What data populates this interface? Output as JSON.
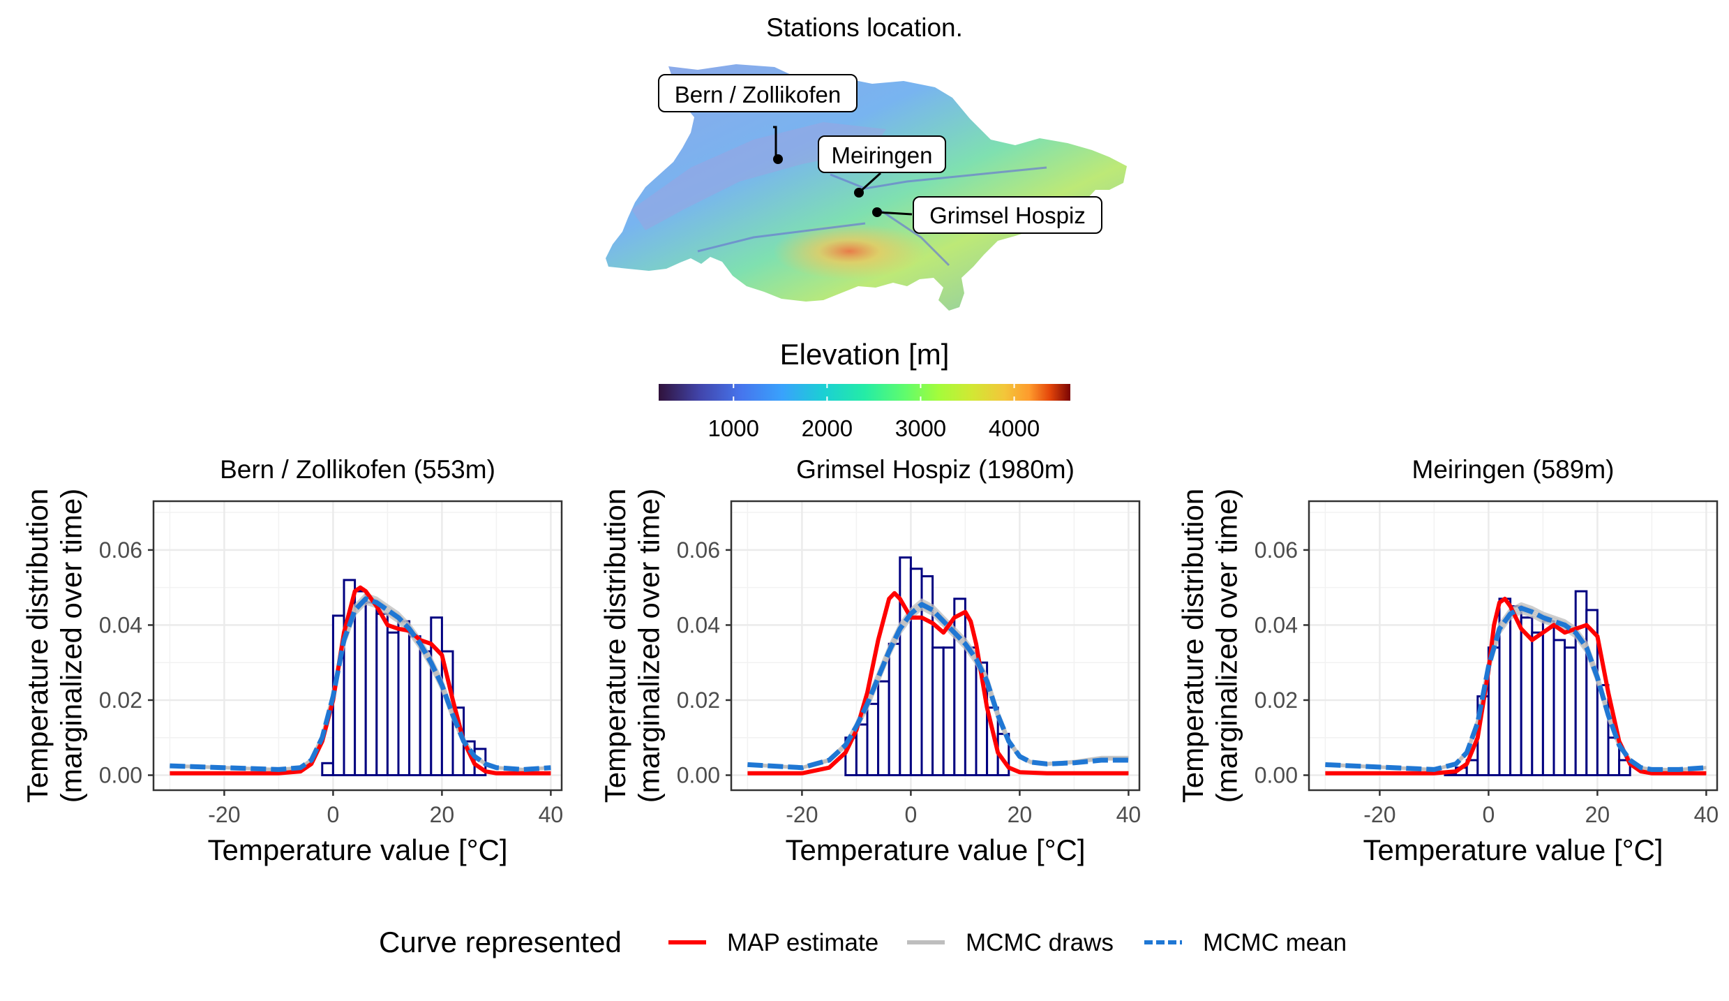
{
  "map": {
    "title": "Stations location.",
    "stations": [
      {
        "name": "Bern / Zollikofen"
      },
      {
        "name": "Meiringen"
      },
      {
        "name": "Grimsel Hospiz"
      }
    ],
    "colorbar": {
      "title": "Elevation [m]",
      "ticks": [
        1000,
        2000,
        3000,
        4000
      ],
      "range": [
        200,
        4600
      ],
      "colormap": "turbo"
    }
  },
  "chart_data": [
    {
      "type": "bar",
      "title": "Bern / Zollikofen (553m)",
      "xlabel": "Temperature value [°C]",
      "ylabel": "Temperature distribution (marginalized over time)",
      "ylabel_lines": [
        "Temperature distribution",
        "(marginalized over time)"
      ],
      "xlim": [
        -33,
        42
      ],
      "ylim": [
        -0.004,
        0.073
      ],
      "xticks": [
        -20,
        0,
        20,
        40
      ],
      "yticks": [
        0.0,
        0.02,
        0.04,
        0.06
      ],
      "yticklabels": [
        "0.00",
        "0.02",
        "0.04",
        "0.06"
      ],
      "histogram": {
        "bin_edges": [
          -2,
          0,
          2,
          4,
          6,
          8,
          10,
          12,
          14,
          16,
          18,
          20,
          22,
          24,
          26,
          28
        ],
        "values": [
          0.0032,
          0.0425,
          0.052,
          0.049,
          0.046,
          0.043,
          0.038,
          0.041,
          0.037,
          0.033,
          0.042,
          0.033,
          0.018,
          0.009,
          0.007
        ]
      },
      "series": [
        {
          "name": "MAP estimate",
          "x": [
            -30,
            -10,
            -6,
            -4,
            -2,
            0,
            2,
            4,
            5,
            6,
            8,
            10,
            12,
            14,
            16,
            18,
            20,
            22,
            24,
            26,
            28,
            30,
            35,
            40
          ],
          "y": [
            0.0005,
            0.0005,
            0.001,
            0.003,
            0.009,
            0.02,
            0.038,
            0.049,
            0.05,
            0.049,
            0.045,
            0.04,
            0.039,
            0.0385,
            0.036,
            0.035,
            0.032,
            0.02,
            0.009,
            0.003,
            0.001,
            0.0005,
            0.0005,
            0.0005
          ]
        },
        {
          "name": "MCMC draws",
          "x": [
            -30,
            -10,
            -6,
            -4,
            -2,
            0,
            2,
            4,
            6,
            8,
            10,
            12,
            14,
            16,
            18,
            20,
            22,
            24,
            26,
            28,
            30,
            35,
            40
          ],
          "y": [
            0.0025,
            0.0015,
            0.002,
            0.004,
            0.01,
            0.021,
            0.036,
            0.044,
            0.047,
            0.046,
            0.044,
            0.042,
            0.039,
            0.035,
            0.03,
            0.024,
            0.016,
            0.009,
            0.005,
            0.003,
            0.002,
            0.0015,
            0.002
          ]
        },
        {
          "name": "MCMC mean",
          "x": [
            -30,
            -10,
            -6,
            -4,
            -2,
            0,
            2,
            4,
            6,
            8,
            10,
            12,
            14,
            16,
            18,
            20,
            22,
            24,
            26,
            28,
            30,
            35,
            40
          ],
          "y": [
            0.0025,
            0.0015,
            0.002,
            0.004,
            0.01,
            0.021,
            0.036,
            0.044,
            0.047,
            0.046,
            0.044,
            0.042,
            0.039,
            0.035,
            0.03,
            0.024,
            0.016,
            0.009,
            0.005,
            0.003,
            0.002,
            0.0015,
            0.002
          ]
        }
      ]
    },
    {
      "type": "bar",
      "title": "Grimsel Hospiz (1980m)",
      "xlabel": "Temperature value [°C]",
      "ylabel": "Temperature distribution (marginalized over time)",
      "ylabel_lines": [
        "Temperature distribution",
        "(marginalized over time)"
      ],
      "xlim": [
        -33,
        42
      ],
      "ylim": [
        -0.004,
        0.073
      ],
      "xticks": [
        -20,
        0,
        20,
        40
      ],
      "yticks": [
        0.0,
        0.02,
        0.04,
        0.06
      ],
      "yticklabels": [
        "0.00",
        "0.02",
        "0.04",
        "0.06"
      ],
      "histogram": {
        "bin_edges": [
          -12,
          -10,
          -8,
          -6,
          -4,
          -2,
          0,
          2,
          4,
          6,
          8,
          10,
          12,
          14,
          16,
          18
        ],
        "values": [
          0.01,
          0.0135,
          0.019,
          0.025,
          0.035,
          0.058,
          0.055,
          0.053,
          0.034,
          0.034,
          0.047,
          0.034,
          0.03,
          0.018,
          0.011
        ]
      },
      "series": [
        {
          "name": "MAP estimate",
          "x": [
            -30,
            -20,
            -15,
            -12,
            -10,
            -8,
            -6,
            -4,
            -3,
            -2,
            0,
            2,
            4,
            6,
            8,
            10,
            11,
            12,
            14,
            16,
            18,
            20,
            25,
            30,
            40
          ],
          "y": [
            0.0005,
            0.0005,
            0.002,
            0.006,
            0.012,
            0.022,
            0.036,
            0.047,
            0.0485,
            0.047,
            0.042,
            0.042,
            0.0405,
            0.038,
            0.042,
            0.0435,
            0.041,
            0.035,
            0.018,
            0.006,
            0.002,
            0.0008,
            0.0005,
            0.0005,
            0.0005
          ]
        },
        {
          "name": "MCMC draws",
          "x": [
            -30,
            -20,
            -15,
            -12,
            -10,
            -8,
            -6,
            -4,
            -2,
            0,
            2,
            4,
            6,
            8,
            10,
            12,
            14,
            16,
            18,
            20,
            22,
            25,
            30,
            35,
            40
          ],
          "y": [
            0.0028,
            0.002,
            0.004,
            0.008,
            0.013,
            0.019,
            0.026,
            0.033,
            0.039,
            0.043,
            0.0455,
            0.044,
            0.041,
            0.038,
            0.035,
            0.031,
            0.025,
            0.016,
            0.009,
            0.005,
            0.0035,
            0.003,
            0.0035,
            0.0045,
            0.0045
          ]
        },
        {
          "name": "MCMC mean",
          "x": [
            -30,
            -20,
            -15,
            -12,
            -10,
            -8,
            -6,
            -4,
            -2,
            0,
            2,
            4,
            6,
            8,
            10,
            12,
            14,
            16,
            18,
            20,
            22,
            25,
            30,
            35,
            40
          ],
          "y": [
            0.0028,
            0.002,
            0.004,
            0.008,
            0.013,
            0.019,
            0.026,
            0.033,
            0.039,
            0.043,
            0.0455,
            0.044,
            0.041,
            0.038,
            0.035,
            0.031,
            0.025,
            0.016,
            0.009,
            0.005,
            0.0035,
            0.003,
            0.0033,
            0.004,
            0.004
          ]
        }
      ]
    },
    {
      "type": "bar",
      "title": "Meiringen (589m)",
      "xlabel": "Temperature value [°C]",
      "ylabel": "Temperature distribution (marginalized over time)",
      "ylabel_lines": [
        "Temperature distribution",
        "(marginalized over time)"
      ],
      "xlim": [
        -33,
        42
      ],
      "ylim": [
        -0.004,
        0.073
      ],
      "xticks": [
        -20,
        0,
        20,
        40
      ],
      "yticks": [
        0.0,
        0.02,
        0.04,
        0.06
      ],
      "yticklabels": [
        "0.00",
        "0.02",
        "0.04",
        "0.06"
      ],
      "histogram": {
        "bin_edges": [
          -8,
          -6,
          -4,
          -2,
          0,
          2,
          4,
          6,
          8,
          10,
          12,
          14,
          16,
          18,
          20,
          22,
          24,
          26
        ],
        "values": [
          0.0005,
          0.002,
          0.004,
          0.021,
          0.034,
          0.047,
          0.045,
          0.042,
          0.038,
          0.041,
          0.036,
          0.034,
          0.049,
          0.044,
          0.024,
          0.01,
          0.004
        ]
      },
      "series": [
        {
          "name": "MAP estimate",
          "x": [
            -30,
            -10,
            -6,
            -4,
            -2,
            0,
            1,
            2,
            3,
            4,
            6,
            8,
            10,
            12,
            14,
            16,
            18,
            20,
            22,
            24,
            26,
            28,
            30,
            35,
            40
          ],
          "y": [
            0.0005,
            0.0005,
            0.001,
            0.003,
            0.01,
            0.028,
            0.04,
            0.046,
            0.047,
            0.045,
            0.039,
            0.036,
            0.038,
            0.04,
            0.038,
            0.039,
            0.04,
            0.037,
            0.022,
            0.009,
            0.003,
            0.001,
            0.0005,
            0.0005,
            0.0005
          ]
        },
        {
          "name": "MCMC draws",
          "x": [
            -30,
            -10,
            -6,
            -4,
            -2,
            0,
            2,
            4,
            6,
            8,
            10,
            12,
            14,
            16,
            18,
            20,
            22,
            24,
            26,
            28,
            30,
            35,
            40
          ],
          "y": [
            0.0028,
            0.0015,
            0.003,
            0.006,
            0.014,
            0.029,
            0.039,
            0.043,
            0.0445,
            0.0435,
            0.042,
            0.041,
            0.04,
            0.038,
            0.034,
            0.026,
            0.016,
            0.008,
            0.004,
            0.002,
            0.0015,
            0.0015,
            0.002
          ]
        },
        {
          "name": "MCMC mean",
          "x": [
            -30,
            -10,
            -6,
            -4,
            -2,
            0,
            2,
            4,
            6,
            8,
            10,
            12,
            14,
            16,
            18,
            20,
            22,
            24,
            26,
            28,
            30,
            35,
            40
          ],
          "y": [
            0.0028,
            0.0015,
            0.003,
            0.006,
            0.014,
            0.029,
            0.039,
            0.043,
            0.0445,
            0.0435,
            0.042,
            0.041,
            0.04,
            0.038,
            0.034,
            0.026,
            0.016,
            0.008,
            0.004,
            0.002,
            0.0015,
            0.0015,
            0.002
          ]
        }
      ]
    }
  ],
  "legend": {
    "title": "Curve represented",
    "placement": "bottom",
    "items": [
      {
        "label": "MAP estimate",
        "color": "#ff0000",
        "style": "solid"
      },
      {
        "label": "MCMC draws",
        "color": "#bebebe",
        "style": "solid"
      },
      {
        "label": "MCMC mean",
        "color": "#1f77d4",
        "style": "dashed"
      }
    ]
  },
  "colors": {
    "histogram_edge": "#000080",
    "histogram_fill": "#ffffff",
    "map_estimate": "#ff0000",
    "mcmc_draws": "#bebebe",
    "mcmc_mean": "#1f77d4",
    "grid": "#ebebeb",
    "panel_border": "#333333"
  }
}
